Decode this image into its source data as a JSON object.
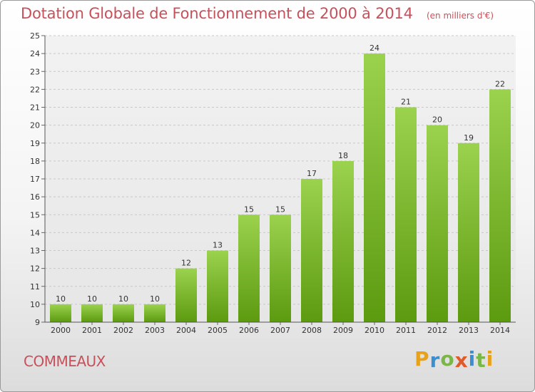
{
  "header": {
    "title": "Dotation Globale de Fonctionnement de 2000 à 2014",
    "subtitle": "(en milliers d'€)"
  },
  "footer": {
    "commune": "COMMEAUX",
    "logo": {
      "letters": [
        "P",
        "r",
        "o",
        "x",
        "i",
        "t",
        "i"
      ],
      "colors": [
        "#e8a21a",
        "#3b8fd0",
        "#7ab648",
        "#e05a2a",
        "#3b8fd0",
        "#7ab648",
        "#e8a21a"
      ]
    }
  },
  "colors": {
    "bar_top": "#9bd24e",
    "bar_bottom": "#5c9a10",
    "text": "#333333",
    "accent": "#c8505a"
  },
  "chart_data": {
    "type": "bar",
    "title": "Dotation Globale de Fonctionnement de 2000 à 2014",
    "subtitle": "(en milliers d'€)",
    "categories": [
      "2000",
      "2001",
      "2002",
      "2003",
      "2004",
      "2005",
      "2006",
      "2007",
      "2008",
      "2009",
      "2010",
      "2011",
      "2012",
      "2013",
      "2014"
    ],
    "values": [
      10,
      10,
      10,
      10,
      12,
      13,
      15,
      15,
      17,
      18,
      24,
      21,
      20,
      19,
      22
    ],
    "ylim": [
      9,
      25
    ],
    "yticks": [
      9,
      10,
      11,
      12,
      13,
      14,
      15,
      16,
      17,
      18,
      19,
      20,
      21,
      22,
      23,
      24,
      25
    ],
    "grid": true,
    "data_labels": true
  }
}
